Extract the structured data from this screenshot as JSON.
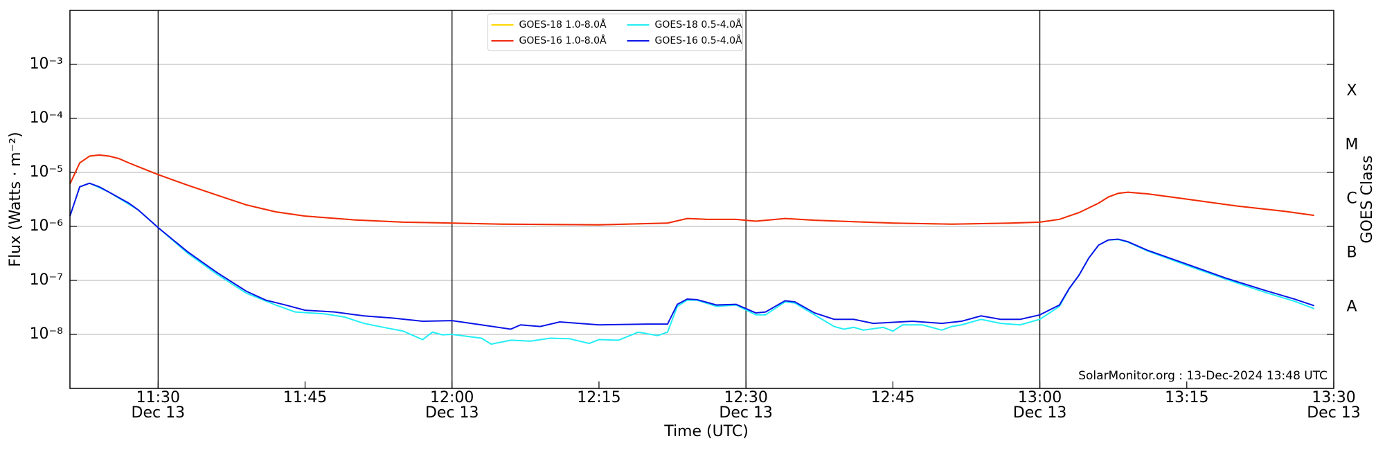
{
  "chart_data": {
    "type": "line",
    "xlabel": "Time (UTC)",
    "ylabel": "Flux (Watts · m⁻²)",
    "y2label": "GOES Class",
    "annotation": "SolarMonitor.org : 13-Dec-2024 13:48 UTC",
    "xlim": [
      "11:21",
      "13:30"
    ],
    "xticks": [
      "11:30",
      "11:45",
      "12:00",
      "12:15",
      "12:30",
      "12:45",
      "13:00",
      "13:15",
      "13:30"
    ],
    "xtick_dates": [
      "Dec 13",
      null,
      "Dec 13",
      null,
      "Dec 13",
      null,
      "Dec 13",
      null,
      "Dec 13"
    ],
    "vlines": [
      "11:30",
      "12:00",
      "12:30",
      "13:00"
    ],
    "log_y": true,
    "ylim": [
      1e-09,
      0.01
    ],
    "yticks": [
      {
        "value": 1e-08,
        "label": "10⁻⁸"
      },
      {
        "value": 1e-07,
        "label": "10⁻⁷"
      },
      {
        "value": 1e-06,
        "label": "10⁻⁶"
      },
      {
        "value": 1e-05,
        "label": "10⁻⁵"
      },
      {
        "value": 0.0001,
        "label": "10⁻⁴"
      },
      {
        "value": 0.001,
        "label": "10⁻³"
      }
    ],
    "y2lim": [
      1e-09,
      0.01
    ],
    "y2ticks": [
      {
        "value": 3.2e-08,
        "label": "A"
      },
      {
        "value": 3.2e-07,
        "label": "B"
      },
      {
        "value": 3.2e-06,
        "label": "C"
      },
      {
        "value": 3.2e-05,
        "label": "M"
      },
      {
        "value": 0.00032,
        "label": "X"
      }
    ],
    "grid": true,
    "legend": "upper center",
    "series": [
      {
        "name": "GOES-18 1.0-8.0Å",
        "color": "#ffd700",
        "x": [
          "11:21",
          "11:22",
          "11:23",
          "11:24",
          "11:25",
          "11:26",
          "11:27",
          "11:28",
          "11:30",
          "11:33",
          "11:36",
          "11:39",
          "11:42",
          "11:45",
          "11:50",
          "11:55",
          "12:00",
          "12:05",
          "12:15",
          "12:22",
          "12:24",
          "12:26",
          "12:29",
          "12:31",
          "12:34",
          "12:37",
          "12:45",
          "12:51",
          "12:57",
          "13:00",
          "13:02",
          "13:04",
          "13:06",
          "13:07",
          "13:08",
          "13:09",
          "13:11",
          "13:15",
          "13:20",
          "13:25",
          "13:28"
        ],
        "values": [
          6.1e-06,
          1.5e-05,
          2e-05,
          2.1e-05,
          2e-05,
          1.8e-05,
          1.5e-05,
          1.27e-05,
          9.1e-06,
          5.8e-06,
          3.8e-06,
          2.5e-06,
          1.86e-06,
          1.55e-06,
          1.32e-06,
          1.2e-06,
          1.15e-06,
          1.1e-06,
          1.07e-06,
          1.15e-06,
          1.4e-06,
          1.35e-06,
          1.35e-06,
          1.25e-06,
          1.4e-06,
          1.3e-06,
          1.15e-06,
          1.1e-06,
          1.15e-06,
          1.2e-06,
          1.35e-06,
          1.8e-06,
          2.7e-06,
          3.5e-06,
          4.1e-06,
          4.3e-06,
          4e-06,
          3.2e-06,
          2.4e-06,
          1.9e-06,
          1.6e-06
        ]
      },
      {
        "name": "GOES-16 1.0-8.0Å",
        "color": "#f02810",
        "x": [
          "11:21",
          "11:22",
          "11:23",
          "11:24",
          "11:25",
          "11:26",
          "11:27",
          "11:28",
          "11:30",
          "11:33",
          "11:36",
          "11:39",
          "11:42",
          "11:45",
          "11:50",
          "11:55",
          "12:00",
          "12:05",
          "12:15",
          "12:22",
          "12:24",
          "12:26",
          "12:29",
          "12:31",
          "12:34",
          "12:37",
          "12:45",
          "12:51",
          "12:57",
          "13:00",
          "13:02",
          "13:04",
          "13:06",
          "13:07",
          "13:08",
          "13:09",
          "13:11",
          "13:15",
          "13:20",
          "13:25",
          "13:28"
        ],
        "values": [
          6.1e-06,
          1.5e-05,
          2e-05,
          2.1e-05,
          2e-05,
          1.8e-05,
          1.5e-05,
          1.27e-05,
          9.1e-06,
          5.8e-06,
          3.8e-06,
          2.5e-06,
          1.86e-06,
          1.55e-06,
          1.32e-06,
          1.2e-06,
          1.15e-06,
          1.1e-06,
          1.07e-06,
          1.15e-06,
          1.4e-06,
          1.35e-06,
          1.35e-06,
          1.25e-06,
          1.4e-06,
          1.3e-06,
          1.15e-06,
          1.1e-06,
          1.15e-06,
          1.2e-06,
          1.35e-06,
          1.8e-06,
          2.7e-06,
          3.5e-06,
          4.1e-06,
          4.3e-06,
          4e-06,
          3.2e-06,
          2.4e-06,
          1.9e-06,
          1.6e-06
        ]
      },
      {
        "name": "GOES-18 0.5-4.0Å",
        "color": "#22eef5",
        "x": [
          "11:21",
          "11:22",
          "11:23",
          "11:25",
          "11:28",
          "11:30",
          "11:33",
          "11:36",
          "11:39",
          "11:42",
          "11:44",
          "11:47",
          "11:49",
          "11:51",
          "11:53",
          "11:55",
          "11:57",
          "11:58",
          "11:59",
          "12:00",
          "12:03",
          "12:04",
          "12:06",
          "12:08",
          "12:10",
          "12:12",
          "12:14",
          "12:15",
          "12:17",
          "12:19",
          "12:21",
          "12:22",
          "12:23",
          "12:24",
          "12:25",
          "12:27",
          "12:29",
          "12:31",
          "12:32",
          "12:34",
          "12:35",
          "12:37",
          "12:39",
          "12:40",
          "12:41",
          "12:42",
          "12:44",
          "12:45",
          "12:46",
          "12:48",
          "12:50",
          "12:51",
          "12:52",
          "12:54",
          "12:56",
          "12:58",
          "13:00",
          "13:02",
          "13:03",
          "13:04",
          "13:05",
          "13:06",
          "13:07",
          "13:08",
          "13:09",
          "13:11",
          "13:15",
          "13:19",
          "13:23",
          "13:26",
          "13:28"
        ],
        "values": [
          1.55e-06,
          5.4e-06,
          6.3e-06,
          4.3e-06,
          2e-06,
          9.5e-07,
          3.2e-07,
          1.3e-07,
          5.8e-08,
          3.5e-08,
          2.6e-08,
          2.4e-08,
          2.1e-08,
          1.6e-08,
          1.35e-08,
          1.15e-08,
          8e-09,
          1.1e-08,
          9.8e-09,
          1e-08,
          8.5e-09,
          6.6e-09,
          7.8e-09,
          7.5e-09,
          8.5e-09,
          8.3e-09,
          6.8e-09,
          8e-09,
          7.8e-09,
          1.1e-08,
          9.5e-09,
          1.1e-08,
          3.3e-08,
          4.3e-08,
          4.3e-08,
          3.3e-08,
          3.5e-08,
          2.3e-08,
          2.3e-08,
          4e-08,
          3.8e-08,
          2.3e-08,
          1.4e-08,
          1.25e-08,
          1.35e-08,
          1.2e-08,
          1.35e-08,
          1.15e-08,
          1.5e-08,
          1.5e-08,
          1.2e-08,
          1.4e-08,
          1.5e-08,
          1.9e-08,
          1.6e-08,
          1.5e-08,
          1.9e-08,
          3.3e-08,
          7e-08,
          1.25e-07,
          2.6e-07,
          4.5e-07,
          5.6e-07,
          5.7e-07,
          5.1e-07,
          3.5e-07,
          1.9e-07,
          1.05e-07,
          6e-08,
          4.1e-08,
          3e-08
        ]
      },
      {
        "name": "GOES-16 0.5-4.0Å",
        "color": "#0a14e6",
        "x": [
          "11:21",
          "11:22",
          "11:23",
          "11:24",
          "11:25",
          "11:27",
          "11:28",
          "11:30",
          "11:33",
          "11:36",
          "11:39",
          "11:41",
          "11:43",
          "11:45",
          "11:48",
          "11:51",
          "11:54",
          "11:57",
          "12:00",
          "12:03",
          "12:06",
          "12:07",
          "12:09",
          "12:11",
          "12:15",
          "12:20",
          "12:22",
          "12:23",
          "12:24",
          "12:25",
          "12:27",
          "12:29",
          "12:31",
          "12:32",
          "12:34",
          "12:35",
          "12:37",
          "12:39",
          "12:41",
          "12:43",
          "12:47",
          "12:50",
          "12:52",
          "12:54",
          "12:56",
          "12:58",
          "13:00",
          "13:02",
          "13:03",
          "13:04",
          "13:05",
          "13:06",
          "13:07",
          "13:08",
          "13:09",
          "13:11",
          "13:15",
          "13:19",
          "13:23",
          "13:26",
          "13:28"
        ],
        "values": [
          1.55e-06,
          5.4e-06,
          6.3e-06,
          5.4e-06,
          4.3e-06,
          2.7e-06,
          2e-06,
          9.5e-07,
          3.4e-07,
          1.4e-07,
          6.3e-08,
          4.3e-08,
          3.5e-08,
          2.8e-08,
          2.6e-08,
          2.2e-08,
          2e-08,
          1.75e-08,
          1.8e-08,
          1.5e-08,
          1.25e-08,
          1.5e-08,
          1.4e-08,
          1.7e-08,
          1.5e-08,
          1.55e-08,
          1.55e-08,
          3.6e-08,
          4.5e-08,
          4.4e-08,
          3.5e-08,
          3.6e-08,
          2.5e-08,
          2.6e-08,
          4.2e-08,
          4e-08,
          2.5e-08,
          1.9e-08,
          1.9e-08,
          1.6e-08,
          1.75e-08,
          1.6e-08,
          1.75e-08,
          2.2e-08,
          1.9e-08,
          1.9e-08,
          2.3e-08,
          3.5e-08,
          7.1e-08,
          1.25e-07,
          2.6e-07,
          4.5e-07,
          5.6e-07,
          5.8e-07,
          5.2e-07,
          3.6e-07,
          2e-07,
          1.1e-07,
          6.5e-08,
          4.5e-08,
          3.4e-08
        ]
      }
    ]
  }
}
